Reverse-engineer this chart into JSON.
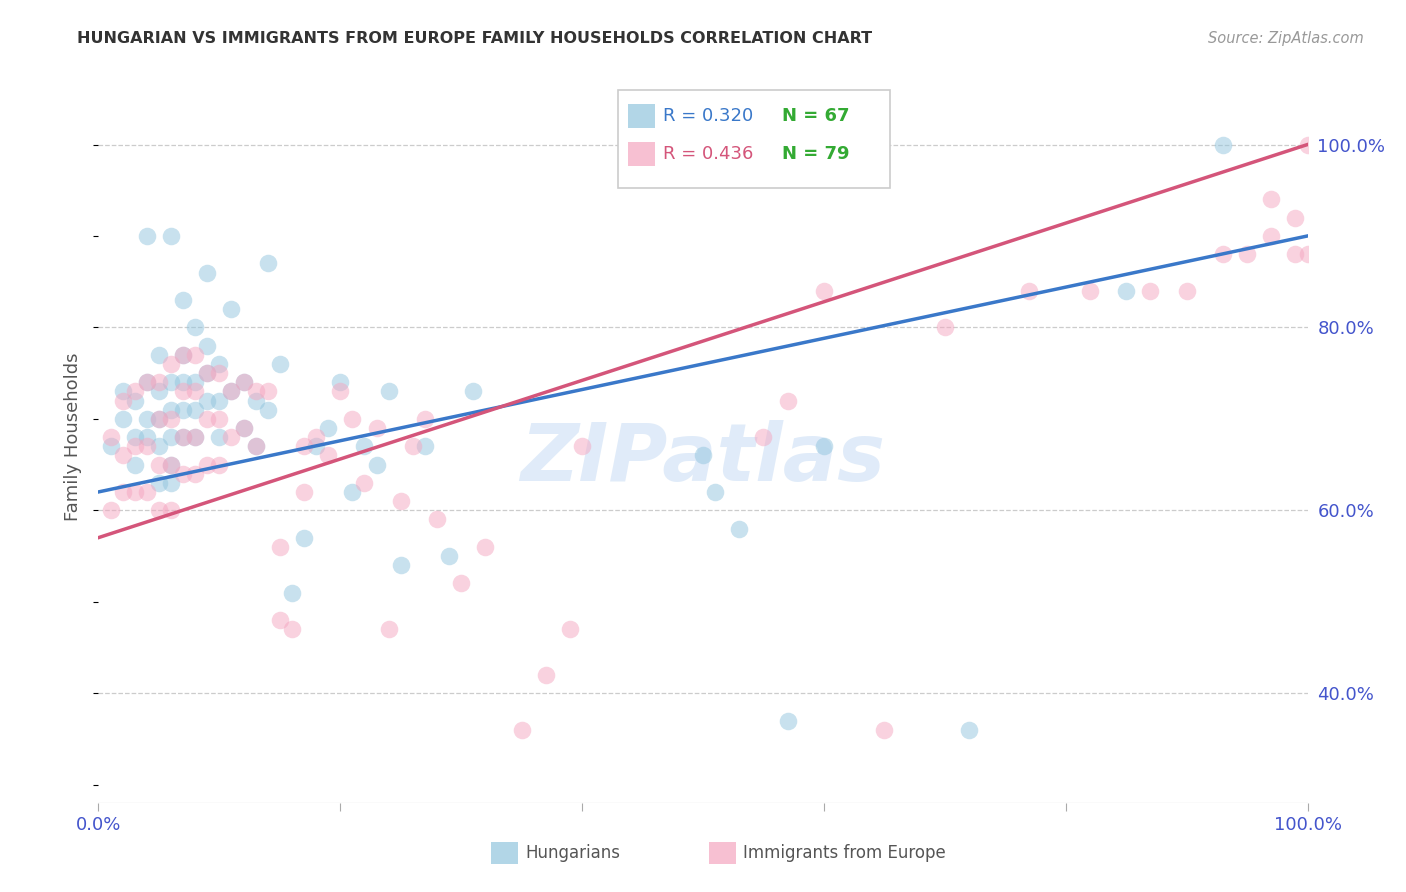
{
  "title": "HUNGARIAN VS IMMIGRANTS FROM EUROPE FAMILY HOUSEHOLDS CORRELATION CHART",
  "source": "Source: ZipAtlas.com",
  "ylabel": "Family Households",
  "ytick_labels": [
    "100.0%",
    "80.0%",
    "60.0%",
    "40.0%"
  ],
  "ytick_values": [
    1.0,
    0.8,
    0.6,
    0.4
  ],
  "xmin": 0.0,
  "xmax": 1.0,
  "ymin": 0.28,
  "ymax": 1.08,
  "watermark": "ZIPatlas",
  "legend_blue_r": "R = 0.320",
  "legend_blue_n": "N = 67",
  "legend_pink_r": "R = 0.436",
  "legend_pink_n": "N = 79",
  "legend_label_blue": "Hungarians",
  "legend_label_pink": "Immigrants from Europe",
  "blue_color": "#92c5de",
  "pink_color": "#f4a6c0",
  "blue_line_color": "#3a78c9",
  "pink_line_color": "#d4557a",
  "title_color": "#333333",
  "axis_tick_color": "#4455cc",
  "legend_r_blue": "#3a78c9",
  "legend_r_pink": "#d4557a",
  "legend_n_color": "#33aa33",
  "blue_intercept": 0.62,
  "blue_slope": 0.28,
  "pink_intercept": 0.57,
  "pink_slope": 0.43,
  "blue_x": [
    0.01,
    0.02,
    0.02,
    0.03,
    0.03,
    0.03,
    0.04,
    0.04,
    0.04,
    0.04,
    0.05,
    0.05,
    0.05,
    0.05,
    0.05,
    0.06,
    0.06,
    0.06,
    0.06,
    0.06,
    0.06,
    0.07,
    0.07,
    0.07,
    0.07,
    0.07,
    0.08,
    0.08,
    0.08,
    0.08,
    0.09,
    0.09,
    0.09,
    0.09,
    0.1,
    0.1,
    0.1,
    0.11,
    0.11,
    0.12,
    0.12,
    0.13,
    0.13,
    0.14,
    0.14,
    0.15,
    0.16,
    0.17,
    0.18,
    0.19,
    0.2,
    0.21,
    0.22,
    0.23,
    0.24,
    0.25,
    0.27,
    0.29,
    0.31,
    0.5,
    0.51,
    0.53,
    0.57,
    0.6,
    0.72,
    0.85,
    0.93
  ],
  "blue_y": [
    0.67,
    0.7,
    0.73,
    0.65,
    0.68,
    0.72,
    0.68,
    0.7,
    0.74,
    0.9,
    0.63,
    0.67,
    0.7,
    0.73,
    0.77,
    0.63,
    0.65,
    0.68,
    0.71,
    0.74,
    0.9,
    0.68,
    0.71,
    0.74,
    0.77,
    0.83,
    0.68,
    0.71,
    0.74,
    0.8,
    0.72,
    0.75,
    0.78,
    0.86,
    0.68,
    0.72,
    0.76,
    0.73,
    0.82,
    0.69,
    0.74,
    0.67,
    0.72,
    0.71,
    0.87,
    0.76,
    0.51,
    0.57,
    0.67,
    0.69,
    0.74,
    0.62,
    0.67,
    0.65,
    0.73,
    0.54,
    0.67,
    0.55,
    0.73,
    0.66,
    0.62,
    0.58,
    0.37,
    0.67,
    0.36,
    0.84,
    1.0
  ],
  "pink_x": [
    0.01,
    0.01,
    0.02,
    0.02,
    0.02,
    0.03,
    0.03,
    0.03,
    0.04,
    0.04,
    0.04,
    0.05,
    0.05,
    0.05,
    0.05,
    0.06,
    0.06,
    0.06,
    0.06,
    0.07,
    0.07,
    0.07,
    0.07,
    0.08,
    0.08,
    0.08,
    0.08,
    0.09,
    0.09,
    0.09,
    0.1,
    0.1,
    0.1,
    0.11,
    0.11,
    0.12,
    0.12,
    0.13,
    0.13,
    0.14,
    0.15,
    0.15,
    0.16,
    0.17,
    0.17,
    0.18,
    0.19,
    0.2,
    0.21,
    0.22,
    0.23,
    0.24,
    0.25,
    0.26,
    0.27,
    0.28,
    0.3,
    0.32,
    0.35,
    0.37,
    0.39,
    0.4,
    0.55,
    0.57,
    0.6,
    0.65,
    0.7,
    0.77,
    0.82,
    0.87,
    0.9,
    0.93,
    0.95,
    0.97,
    0.97,
    0.99,
    0.99,
    1.0,
    1.0
  ],
  "pink_y": [
    0.6,
    0.68,
    0.62,
    0.66,
    0.72,
    0.62,
    0.67,
    0.73,
    0.62,
    0.67,
    0.74,
    0.6,
    0.65,
    0.7,
    0.74,
    0.6,
    0.65,
    0.7,
    0.76,
    0.64,
    0.68,
    0.73,
    0.77,
    0.64,
    0.68,
    0.73,
    0.77,
    0.65,
    0.7,
    0.75,
    0.65,
    0.7,
    0.75,
    0.68,
    0.73,
    0.69,
    0.74,
    0.67,
    0.73,
    0.73,
    0.48,
    0.56,
    0.47,
    0.62,
    0.67,
    0.68,
    0.66,
    0.73,
    0.7,
    0.63,
    0.69,
    0.47,
    0.61,
    0.67,
    0.7,
    0.59,
    0.52,
    0.56,
    0.36,
    0.42,
    0.47,
    0.67,
    0.68,
    0.72,
    0.84,
    0.36,
    0.8,
    0.84,
    0.84,
    0.84,
    0.84,
    0.88,
    0.88,
    0.9,
    0.94,
    0.88,
    0.92,
    0.88,
    1.0
  ]
}
